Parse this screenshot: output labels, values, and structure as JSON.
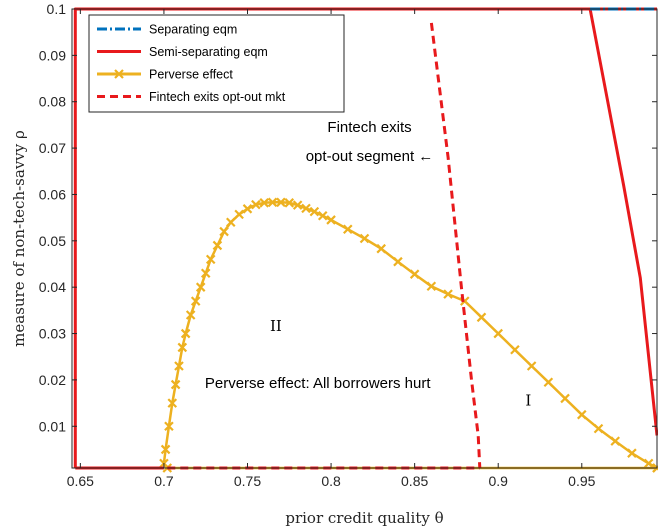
{
  "chart_data": {
    "type": "line",
    "xlabel": "prior credit quality θ",
    "ylabel": "measure of non-tech-savvy ρ",
    "xlim": [
      0.645,
      0.995
    ],
    "ylim": [
      0.001,
      0.1
    ],
    "x_ticks": [
      "0.65",
      "0.7",
      "0.75",
      "0.8",
      "0.85",
      "0.9",
      "0.95"
    ],
    "y_ticks": [
      "0.01",
      "0.02",
      "0.03",
      "0.04",
      "0.05",
      "0.06",
      "0.07",
      "0.08",
      "0.09",
      "0.1"
    ],
    "legend_position": "top-left",
    "grid": false,
    "series": [
      {
        "name": "Separating eqm",
        "color": "#0072BD",
        "style": "dash-dot",
        "x": [
          0.955,
          0.995
        ],
        "y": [
          0.1,
          0.1
        ]
      },
      {
        "name": "Semi-separating eqm",
        "color": "#E8191C",
        "style": "solid",
        "segments": [
          {
            "x": [
              0.647,
              0.647,
              0.955,
              0.995
            ],
            "y": [
              0.001,
              0.1,
              0.1,
              0.1
            ]
          },
          {
            "x": [
              0.647,
              0.7
            ],
            "y": [
              0.001,
              0.001
            ]
          },
          {
            "x": [
              0.955,
              0.965,
              0.975,
              0.985,
              0.995
            ],
            "y": [
              0.1,
              0.081,
              0.062,
              0.042,
              0.008
            ]
          }
        ]
      },
      {
        "name": "Perverse effect",
        "color": "#EDB120",
        "style": "solid-x",
        "segments": [
          {
            "x": [
              0.7,
              0.701,
              0.703,
              0.705,
              0.707,
              0.709,
              0.711,
              0.713,
              0.716,
              0.719,
              0.722,
              0.725,
              0.728,
              0.732,
              0.736,
              0.74,
              0.745,
              0.75,
              0.755,
              0.76,
              0.765,
              0.77,
              0.775,
              0.78,
              0.785,
              0.79,
              0.795,
              0.8,
              0.81,
              0.82,
              0.83,
              0.84,
              0.85,
              0.86,
              0.87,
              0.88,
              0.89,
              0.9,
              0.91,
              0.92,
              0.93,
              0.94,
              0.95,
              0.96,
              0.97,
              0.98,
              0.99,
              0.995
            ],
            "y": [
              0.002,
              0.005,
              0.01,
              0.015,
              0.019,
              0.023,
              0.027,
              0.03,
              0.034,
              0.037,
              0.04,
              0.043,
              0.046,
              0.049,
              0.052,
              0.054,
              0.0557,
              0.0569,
              0.0578,
              0.0582,
              0.0583,
              0.0583,
              0.0582,
              0.0577,
              0.057,
              0.0563,
              0.0554,
              0.0545,
              0.0525,
              0.0505,
              0.0483,
              0.0455,
              0.0428,
              0.0402,
              0.0385,
              0.037,
              0.0335,
              0.03,
              0.0265,
              0.023,
              0.0195,
              0.016,
              0.0125,
              0.0095,
              0.0068,
              0.0042,
              0.002,
              0.001
            ]
          },
          {
            "x": [
              0.702,
              0.995
            ],
            "y": [
              0.001,
              0.001
            ]
          }
        ]
      },
      {
        "name": "Fintech exits opt-out mkt",
        "color": "#E8191C",
        "style": "dashed",
        "segments": [
          {
            "x": [
              0.86,
              0.87,
              0.878,
              0.884,
              0.888,
              0.889
            ],
            "y": [
              0.097,
              0.068,
              0.04,
              0.02,
              0.008,
              0.001
            ]
          },
          {
            "x": [
              0.702,
              0.889
            ],
            "y": [
              0.001,
              0.001
            ]
          }
        ]
      }
    ],
    "annotations": [
      {
        "text": "Fintech exits",
        "x": 0.823,
        "y": 0.0735
      },
      {
        "text": "opt-out segment ←",
        "x": 0.823,
        "y": 0.0672
      },
      {
        "text": "II",
        "x": 0.767,
        "y": 0.0305
      },
      {
        "text": "Perverse effect: All borrowers hurt",
        "x": 0.792,
        "y": 0.0183
      },
      {
        "text": "I",
        "x": 0.918,
        "y": 0.0145
      }
    ]
  }
}
